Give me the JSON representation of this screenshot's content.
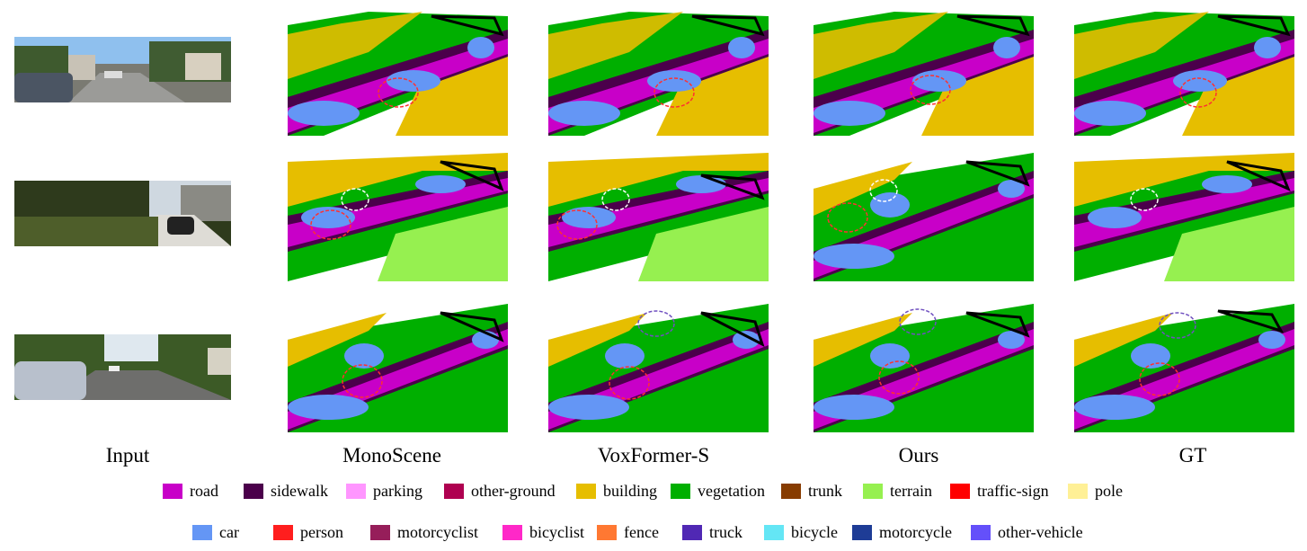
{
  "columns": [
    "Input",
    "MonoScene",
    "VoxFormer-S",
    "Ours",
    "GT"
  ],
  "legend_row1": [
    {
      "label": "road",
      "color": "#c800c8"
    },
    {
      "label": "sidewalk",
      "color": "#4b004b"
    },
    {
      "label": "parking",
      "color": "#ff96ff"
    },
    {
      "label": "other-ground",
      "color": "#af0050"
    },
    {
      "label": "building",
      "color": "#e6be00"
    },
    {
      "label": "vegetation",
      "color": "#00af00"
    },
    {
      "label": "trunk",
      "color": "#873c00"
    },
    {
      "label": "terrain",
      "color": "#96f050"
    },
    {
      "label": "traffic-sign",
      "color": "#ff0000"
    },
    {
      "label": "pole",
      "color": "#fff096"
    }
  ],
  "legend_row2": [
    {
      "label": "car",
      "color": "#6496f5"
    },
    {
      "label": "person",
      "color": "#ff1e1e"
    },
    {
      "label": "motorcyclist",
      "color": "#961e5a"
    },
    {
      "label": "bicyclist",
      "color": "#ff28c8"
    },
    {
      "label": "fence",
      "color": "#ff7832"
    },
    {
      "label": "truck",
      "color": "#5028b4"
    },
    {
      "label": "bicycle",
      "color": "#64e6f5"
    },
    {
      "label": "motorcycle",
      "color": "#1e3c96"
    },
    {
      "label": "other-vehicle",
      "color": "#6450fa"
    }
  ],
  "palette": {
    "road": "#c800c8",
    "sidewalk": "#4b004b",
    "building": "#e6be00",
    "vegetation": "#00af00",
    "dark_vegetation": "#0a8a14",
    "terrain": "#96f050",
    "car": "#6496f5",
    "trunk": "#873c00",
    "parking": "#ff96ff",
    "fence": "#ff7832",
    "sky": "#9cc8ef",
    "street": "#8a8a8a"
  }
}
